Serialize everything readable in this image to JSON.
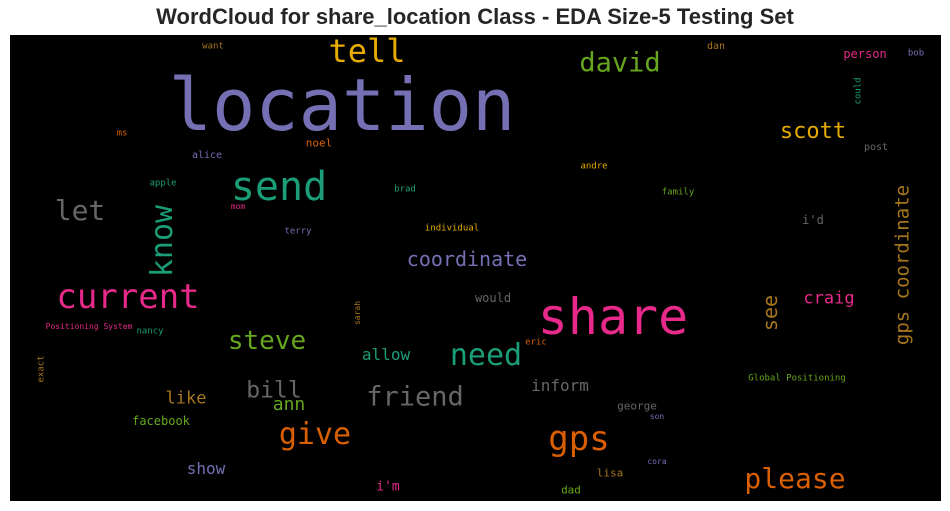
{
  "title": "WordCloud for share_location Class - EDA Size-5 Testing Set",
  "chart_data": {
    "type": "wordcloud",
    "background": "#000000",
    "colormap": [
      "#7570b3",
      "#e7298a",
      "#1b9e77",
      "#d95f02",
      "#66a61e",
      "#e6ab02",
      "#a6761d",
      "#666666"
    ],
    "words": [
      {
        "text": "location",
        "color": "#7570b3"
      },
      {
        "text": "share",
        "color": "#e7298a"
      },
      {
        "text": "send",
        "color": "#1b9e77"
      },
      {
        "text": "current",
        "color": "#e7298a"
      },
      {
        "text": "gps",
        "color": "#d95f02"
      },
      {
        "text": "tell",
        "color": "#e6ab02"
      },
      {
        "text": "need",
        "color": "#1b9e77"
      },
      {
        "text": "know",
        "color": "#1b9e77"
      },
      {
        "text": "david",
        "color": "#66a61e"
      },
      {
        "text": "give",
        "color": "#d95f02"
      },
      {
        "text": "let",
        "color": "#666666"
      },
      {
        "text": "please",
        "color": "#d95f02"
      },
      {
        "text": "friend",
        "color": "#666666"
      },
      {
        "text": "steve",
        "color": "#66a61e"
      },
      {
        "text": "scott",
        "color": "#e6ab02"
      },
      {
        "text": "gps coordinate",
        "color": "#a6761d"
      },
      {
        "text": "coordinate",
        "color": "#7570b3"
      },
      {
        "text": "bill",
        "color": "#666666"
      },
      {
        "text": "see",
        "color": "#a6761d"
      },
      {
        "text": "craig",
        "color": "#e7298a"
      },
      {
        "text": "ann",
        "color": "#66a61e"
      },
      {
        "text": "like",
        "color": "#a6761d"
      },
      {
        "text": "inform",
        "color": "#666666"
      },
      {
        "text": "allow",
        "color": "#1b9e77"
      },
      {
        "text": "show",
        "color": "#7570b3"
      },
      {
        "text": "i'm",
        "color": "#e7298a"
      },
      {
        "text": "facebook",
        "color": "#66a61e"
      },
      {
        "text": "would",
        "color": "#666666"
      },
      {
        "text": "george",
        "color": "#666666"
      },
      {
        "text": "lisa",
        "color": "#a6761d"
      },
      {
        "text": "dad",
        "color": "#66a61e"
      },
      {
        "text": "i'd",
        "color": "#666666"
      },
      {
        "text": "person",
        "color": "#e7298a"
      },
      {
        "text": "noel",
        "color": "#d95f02"
      },
      {
        "text": "alice",
        "color": "#7570b3"
      },
      {
        "text": "andre",
        "color": "#e6ab02"
      },
      {
        "text": "post",
        "color": "#666666"
      },
      {
        "text": "dan",
        "color": "#a6761d"
      },
      {
        "text": "bob",
        "color": "#7570b3"
      },
      {
        "text": "want",
        "color": "#a6761d"
      },
      {
        "text": "ms",
        "color": "#d95f02"
      },
      {
        "text": "could",
        "color": "#1b9e77"
      },
      {
        "text": "apple",
        "color": "#1b9e77"
      },
      {
        "text": "brad",
        "color": "#1b9e77"
      },
      {
        "text": "family",
        "color": "#66a61e"
      },
      {
        "text": "mom",
        "color": "#e7298a"
      },
      {
        "text": "terry",
        "color": "#7570b3"
      },
      {
        "text": "individual",
        "color": "#e6ab02"
      },
      {
        "text": "sarah",
        "color": "#a6761d"
      },
      {
        "text": "nancy",
        "color": "#1b9e77"
      },
      {
        "text": "Positioning System",
        "color": "#e7298a"
      },
      {
        "text": "exact",
        "color": "#a6761d"
      },
      {
        "text": "eric",
        "color": "#d95f02"
      },
      {
        "text": "Global Positioning",
        "color": "#66a61e"
      },
      {
        "text": "son",
        "color": "#7570b3"
      },
      {
        "text": "cora",
        "color": "#7570b3"
      }
    ]
  }
}
